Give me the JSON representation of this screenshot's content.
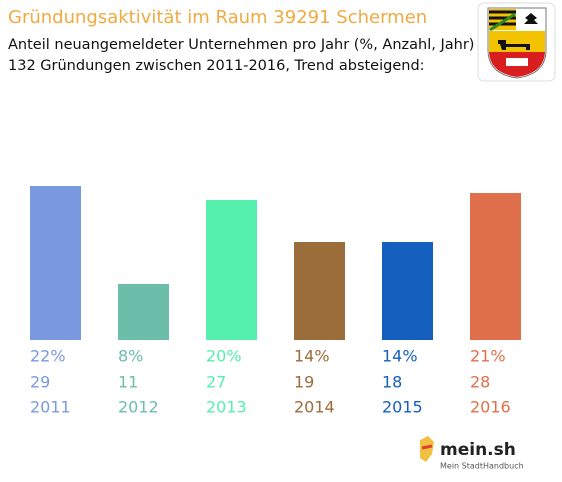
{
  "chart_data": {
    "type": "bar",
    "title": "Gründungsaktivität im Raum 39291 Schermen",
    "subtitle": [
      "Anteil neuangemeldeter Unternehmen pro Jahr (%, Anzahl, Jahr)",
      "132 Gründungen zwischen 2011-2016, Trend absteigend:"
    ],
    "categories": [
      "2011",
      "2012",
      "2013",
      "2014",
      "2015",
      "2016"
    ],
    "values": [
      22,
      8,
      20,
      14,
      14,
      21
    ],
    "value_labels": [
      "22%",
      "8%",
      "20%",
      "14%",
      "14%",
      "21%"
    ],
    "counts": [
      29,
      11,
      27,
      19,
      18,
      28
    ],
    "colors": [
      "#7b99e0",
      "#6dbdab",
      "#55f0ad",
      "#9b6d3a",
      "#155fbf",
      "#e0704b"
    ],
    "brand": {
      "name": "mein.sh",
      "tagline": "Mein StadtHandbuch"
    }
  }
}
